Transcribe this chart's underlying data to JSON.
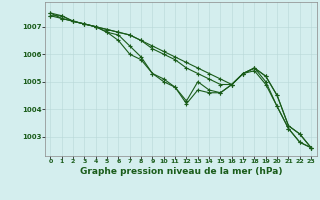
{
  "title": "Graphe pression niveau de la mer (hPa)",
  "background_color": "#d4eeee",
  "grid_color": "#b8d8d8",
  "line_color": "#1a5c1a",
  "marker": "P",
  "markersize": 2.5,
  "linewidth": 0.8,
  "xlim": [
    -0.5,
    23.5
  ],
  "ylim": [
    1002.3,
    1007.9
  ],
  "yticks": [
    1003,
    1004,
    1005,
    1006,
    1007
  ],
  "xticks": [
    0,
    1,
    2,
    3,
    4,
    5,
    6,
    7,
    8,
    9,
    10,
    11,
    12,
    13,
    14,
    15,
    16,
    17,
    18,
    19,
    20,
    21,
    22,
    23
  ],
  "series": [
    [
      1007.4,
      1007.4,
      1007.2,
      1007.1,
      1007.0,
      1006.9,
      1006.8,
      1006.7,
      1006.5,
      1006.3,
      1006.1,
      1005.9,
      1005.7,
      1005.5,
      1005.3,
      1005.1,
      1004.9,
      1005.3,
      1005.5,
      1005.2,
      1004.5,
      1003.4,
      1003.1,
      1002.6
    ],
    [
      1007.4,
      1007.3,
      1007.2,
      1007.1,
      1007.0,
      1006.9,
      1006.8,
      1006.7,
      1006.5,
      1006.2,
      1006.0,
      1005.8,
      1005.5,
      1005.3,
      1005.1,
      1004.9,
      1004.9,
      1005.3,
      1005.5,
      1005.2,
      1004.5,
      1003.4,
      1003.1,
      1002.6
    ],
    [
      1007.5,
      1007.4,
      1007.2,
      1007.1,
      1007.0,
      1006.8,
      1006.7,
      1006.3,
      1005.9,
      1005.3,
      1005.1,
      1004.8,
      1004.2,
      1004.7,
      1004.6,
      1004.6,
      1004.9,
      1005.3,
      1005.5,
      1005.0,
      1004.1,
      1003.3,
      1002.8,
      1002.6
    ],
    [
      1007.5,
      1007.3,
      1007.2,
      1007.1,
      1007.0,
      1006.8,
      1006.5,
      1006.0,
      1005.8,
      1005.3,
      1005.0,
      1004.8,
      1004.3,
      1005.0,
      1004.7,
      1004.6,
      1004.9,
      1005.3,
      1005.4,
      1004.9,
      1004.1,
      1003.3,
      1002.8,
      1002.6
    ]
  ]
}
